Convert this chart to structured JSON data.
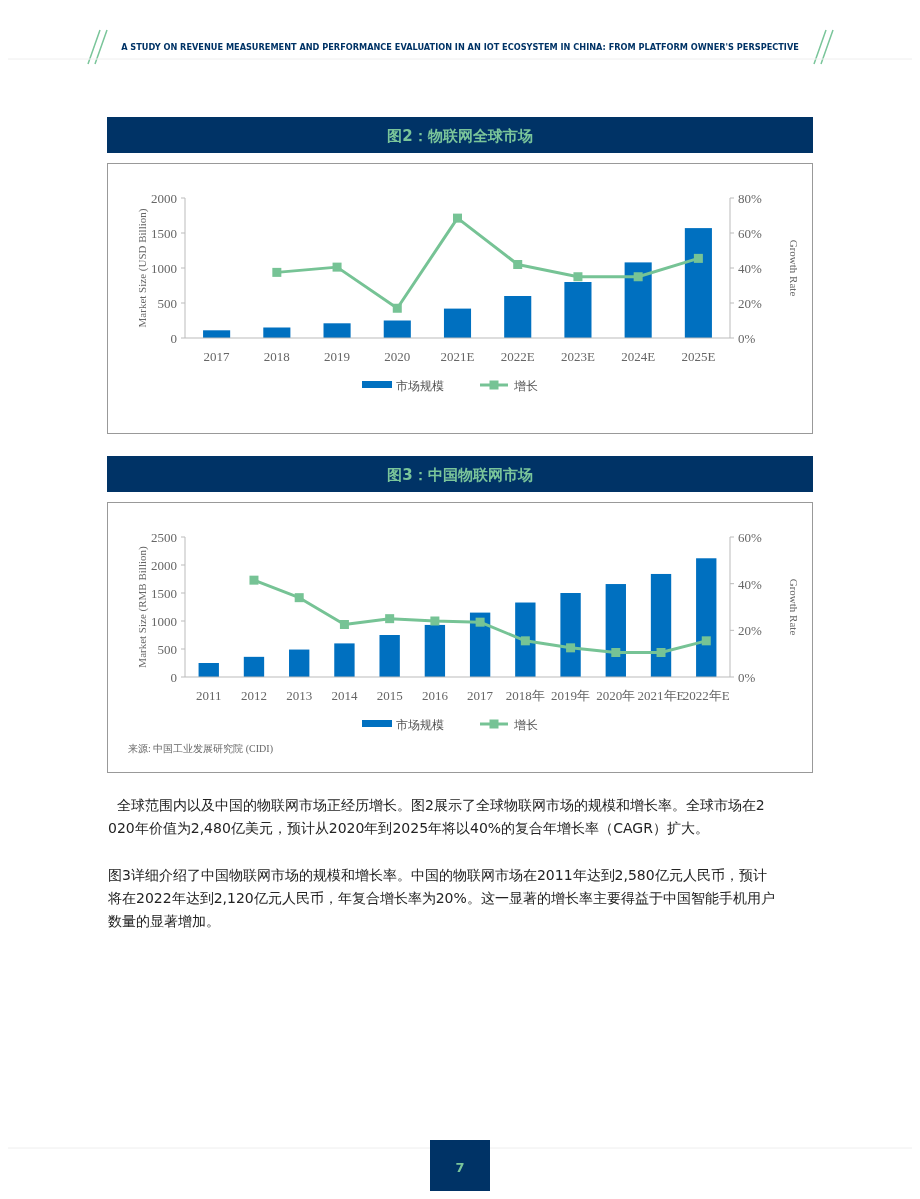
{
  "chart_data": [
    {
      "type": "bar",
      "title": "图2：物联网全球市场",
      "ylabel": "Market Size (USD Billion)",
      "y2label": "Growth Rate",
      "categories": [
        "2017",
        "2018",
        "2019",
        "2020",
        "2021E",
        "2022E",
        "2023E",
        "2024E",
        "2025E"
      ],
      "series": [
        {
          "name": "市场规模",
          "color": "#0070c0",
          "values": [
            110,
            150,
            210,
            250,
            420,
            600,
            800,
            1080,
            1570
          ]
        },
        {
          "name": "增长",
          "type": "line",
          "axis": "y2",
          "color": "#76c395",
          "values": [
            null,
            37.5,
            40.5,
            17,
            68.5,
            42,
            35,
            35,
            45.5
          ]
        }
      ],
      "ylim": [
        0,
        2000
      ],
      "yticks": [
        0,
        500,
        1000,
        1500,
        2000
      ],
      "y2lim": [
        0,
        80
      ],
      "y2ticks": [
        {
          "value": 0,
          "label": "0%"
        },
        {
          "value": 20,
          "label": "20%"
        },
        {
          "value": 40,
          "label": "40%"
        },
        {
          "value": 60,
          "label": "60%"
        },
        {
          "value": 80,
          "label": "80%"
        }
      ],
      "legend": "bottom",
      "marker": "square",
      "grid": false,
      "annotations": [
        "A STUDY ON REVENUE MEASUREMENT AND PERFORMANCE EVALUATION IN AN IOT ECOSYSTEM IN CHINA: FROM PLATFORM OWNER'S PERSPECTIVE",
        "7"
      ]
    },
    {
      "type": "bar",
      "title": "图3：中国物联网市场",
      "ylabel": "Market Size (RMB Billion)",
      "y2label": "Growth Rate",
      "categories": [
        "2011",
        "2012",
        "2013",
        "2014",
        "2015",
        "2016",
        "2017",
        "2018年",
        "2019年",
        "2020年",
        "2021年E",
        "2022年E"
      ],
      "series": [
        {
          "name": "市场规模",
          "color": "#0070c0",
          "values": [
            250,
            360,
            490,
            600,
            750,
            930,
            1150,
            1330,
            1500,
            1660,
            1840,
            2120
          ]
        },
        {
          "name": "增长",
          "type": "line",
          "axis": "y2",
          "color": "#76c395",
          "values": [
            null,
            41.5,
            34,
            22.5,
            25,
            24,
            23.5,
            15.5,
            12.5,
            10.5,
            10.5,
            15.5
          ]
        }
      ],
      "ylim": [
        0,
        2500
      ],
      "yticks": [
        0,
        500,
        1000,
        1500,
        2000,
        2500
      ],
      "y2lim": [
        0,
        60
      ],
      "y2ticks": [
        {
          "value": 0,
          "label": "0%"
        },
        {
          "value": 20,
          "label": "20%"
        },
        {
          "value": 40,
          "label": "40%"
        },
        {
          "value": 60,
          "label": "60%"
        }
      ],
      "legend": "bottom",
      "marker": "square",
      "grid": false,
      "annotations": [
        "来源: 中国工业发展研究院 (CIDI)",
        "  全球范围内以及中国的物联网市场正经历增长。图2展示了全球物联网市场的规模和增长率。全球市场在2020年价值为2,480亿美元，预计从2020年到2025年将以40%的复合年增长率（CAGR）扩大。",
        "图3详细介绍了中国物联网市场的规模和增长率。中国的物联网市场在2011年达到2,580亿元人民币，预计将在2022年达到2,120亿元人民币，年复合增长率为20%。这一显著的增长率主要得益于中国智能手机用户数量的显著增加。"
      ]
    }
  ]
}
